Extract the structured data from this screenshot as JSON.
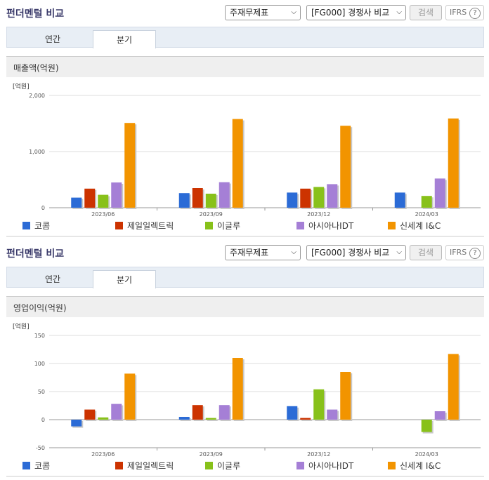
{
  "panels": [
    {
      "title": "펀더멘털 비교",
      "select1": "주재무제표",
      "select2": "[FG000] 경쟁사 비교",
      "search_label": "검색",
      "ifrs_label": "IFRS",
      "ifrs_help": "?",
      "tabs": [
        {
          "label": "연간"
        },
        {
          "label": "분기"
        }
      ],
      "active_tab": 1,
      "section_title": "매출액(억원)",
      "chart_data": {
        "type": "bar",
        "unit": "[억원]",
        "categories": [
          "2023/06",
          "2023/09",
          "2023/12",
          "2024/03"
        ],
        "ylim": [
          0,
          2000
        ],
        "yticks": [
          0,
          1000,
          2000
        ],
        "ytick_labels": [
          "0",
          "1,000",
          "2,000"
        ],
        "grid": true,
        "legend_position": "bottom",
        "series": [
          {
            "name": "코콤",
            "color": "#2b6bd6",
            "values": [
              180,
              260,
              270,
              270
            ]
          },
          {
            "name": "제일일렉트릭",
            "color": "#cc3300",
            "values": [
              340,
              350,
              340,
              null
            ]
          },
          {
            "name": "이글루",
            "color": "#88c11a",
            "values": [
              230,
              250,
              370,
              210
            ]
          },
          {
            "name": "아시아나IDT",
            "color": "#a57fd6",
            "values": [
              450,
              455,
              420,
              520
            ]
          },
          {
            "name": "신세계 I&C",
            "color": "#f29400",
            "values": [
              1510,
              1580,
              1460,
              1590
            ]
          }
        ]
      }
    },
    {
      "title": "펀더멘털 비교",
      "select1": "주재무제표",
      "select2": "[FG000] 경쟁사 비교",
      "search_label": "검색",
      "ifrs_label": "IFRS",
      "ifrs_help": "?",
      "tabs": [
        {
          "label": "연간"
        },
        {
          "label": "분기"
        }
      ],
      "active_tab": 1,
      "section_title": "영업이익(억원)",
      "chart_data": {
        "type": "bar",
        "unit": "[억원]",
        "categories": [
          "2023/06",
          "2023/09",
          "2023/12",
          "2024/03"
        ],
        "ylim": [
          -50,
          150
        ],
        "yticks": [
          -50,
          0,
          50,
          100,
          150
        ],
        "ytick_labels": [
          "-50",
          "0",
          "50",
          "100",
          "150"
        ],
        "grid": true,
        "legend_position": "bottom",
        "series": [
          {
            "name": "코콤",
            "color": "#2b6bd6",
            "values": [
              -12,
              5,
              24,
              null
            ]
          },
          {
            "name": "제일일렉트릭",
            "color": "#cc3300",
            "values": [
              18,
              26,
              3,
              null
            ]
          },
          {
            "name": "이글루",
            "color": "#88c11a",
            "values": [
              4,
              3,
              54,
              -22
            ]
          },
          {
            "name": "아시아나IDT",
            "color": "#a57fd6",
            "values": [
              28,
              26,
              18,
              15
            ]
          },
          {
            "name": "신세계 I&C",
            "color": "#f29400",
            "values": [
              82,
              110,
              85,
              117
            ]
          }
        ]
      }
    }
  ]
}
